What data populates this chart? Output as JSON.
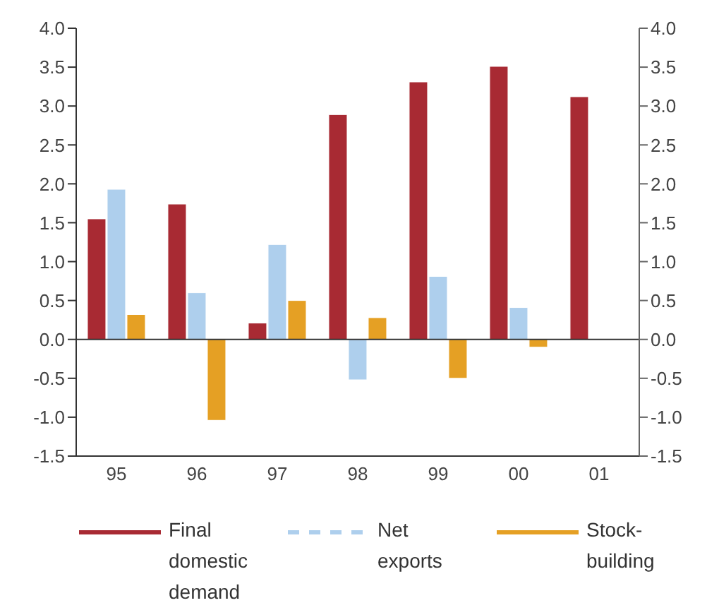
{
  "chart_data": {
    "type": "bar",
    "categories": [
      "95",
      "96",
      "97",
      "98",
      "99",
      "00",
      "01"
    ],
    "series": [
      {
        "name": "Final domestic demand",
        "color": "#a82a33",
        "values": [
          1.55,
          1.74,
          0.21,
          2.89,
          3.31,
          3.51,
          3.12
        ]
      },
      {
        "name": "Net exports",
        "color": "#aecfed",
        "line_style": "dashed",
        "values": [
          1.93,
          0.6,
          1.22,
          -0.52,
          0.81,
          0.41,
          0
        ]
      },
      {
        "name": "Stock-building",
        "color": "#e5a024",
        "values": [
          0.32,
          -1.04,
          0.5,
          0.28,
          -0.5,
          -0.1,
          0
        ]
      }
    ],
    "ylim": [
      -1.5,
      4
    ],
    "yticks": [
      {
        "value": -1.5,
        "label": "-1.5"
      },
      {
        "value": -1,
        "label": "-1.0"
      },
      {
        "value": -0.5,
        "label": "-0.5"
      },
      {
        "value": 0,
        "label": "0.0"
      },
      {
        "value": 0.5,
        "label": "0.5"
      },
      {
        "value": 1,
        "label": "1.0"
      },
      {
        "value": 1.5,
        "label": "1.5"
      },
      {
        "value": 2,
        "label": "2.0"
      },
      {
        "value": 2.5,
        "label": "2.5"
      },
      {
        "value": 3,
        "label": "3.0"
      },
      {
        "value": 3.5,
        "label": "3.5"
      },
      {
        "value": 4,
        "label": "4.0"
      }
    ],
    "y2lim": [
      -1.5,
      4
    ],
    "y2ticks": [
      {
        "value": -1.5,
        "label": "-1.5"
      },
      {
        "value": -1,
        "label": "-1.0"
      },
      {
        "value": -0.5,
        "label": "-0.5"
      },
      {
        "value": 0,
        "label": "0.0"
      },
      {
        "value": 0.5,
        "label": "0.5"
      },
      {
        "value": 1,
        "label": "1.0"
      },
      {
        "value": 1.5,
        "label": "1.5"
      },
      {
        "value": 2,
        "label": "2.0"
      },
      {
        "value": 2.5,
        "label": "2.5"
      },
      {
        "value": 3,
        "label": "3.0"
      },
      {
        "value": 3.5,
        "label": "3.5"
      },
      {
        "value": 4,
        "label": "4.0"
      }
    ],
    "legend": "bottom"
  }
}
